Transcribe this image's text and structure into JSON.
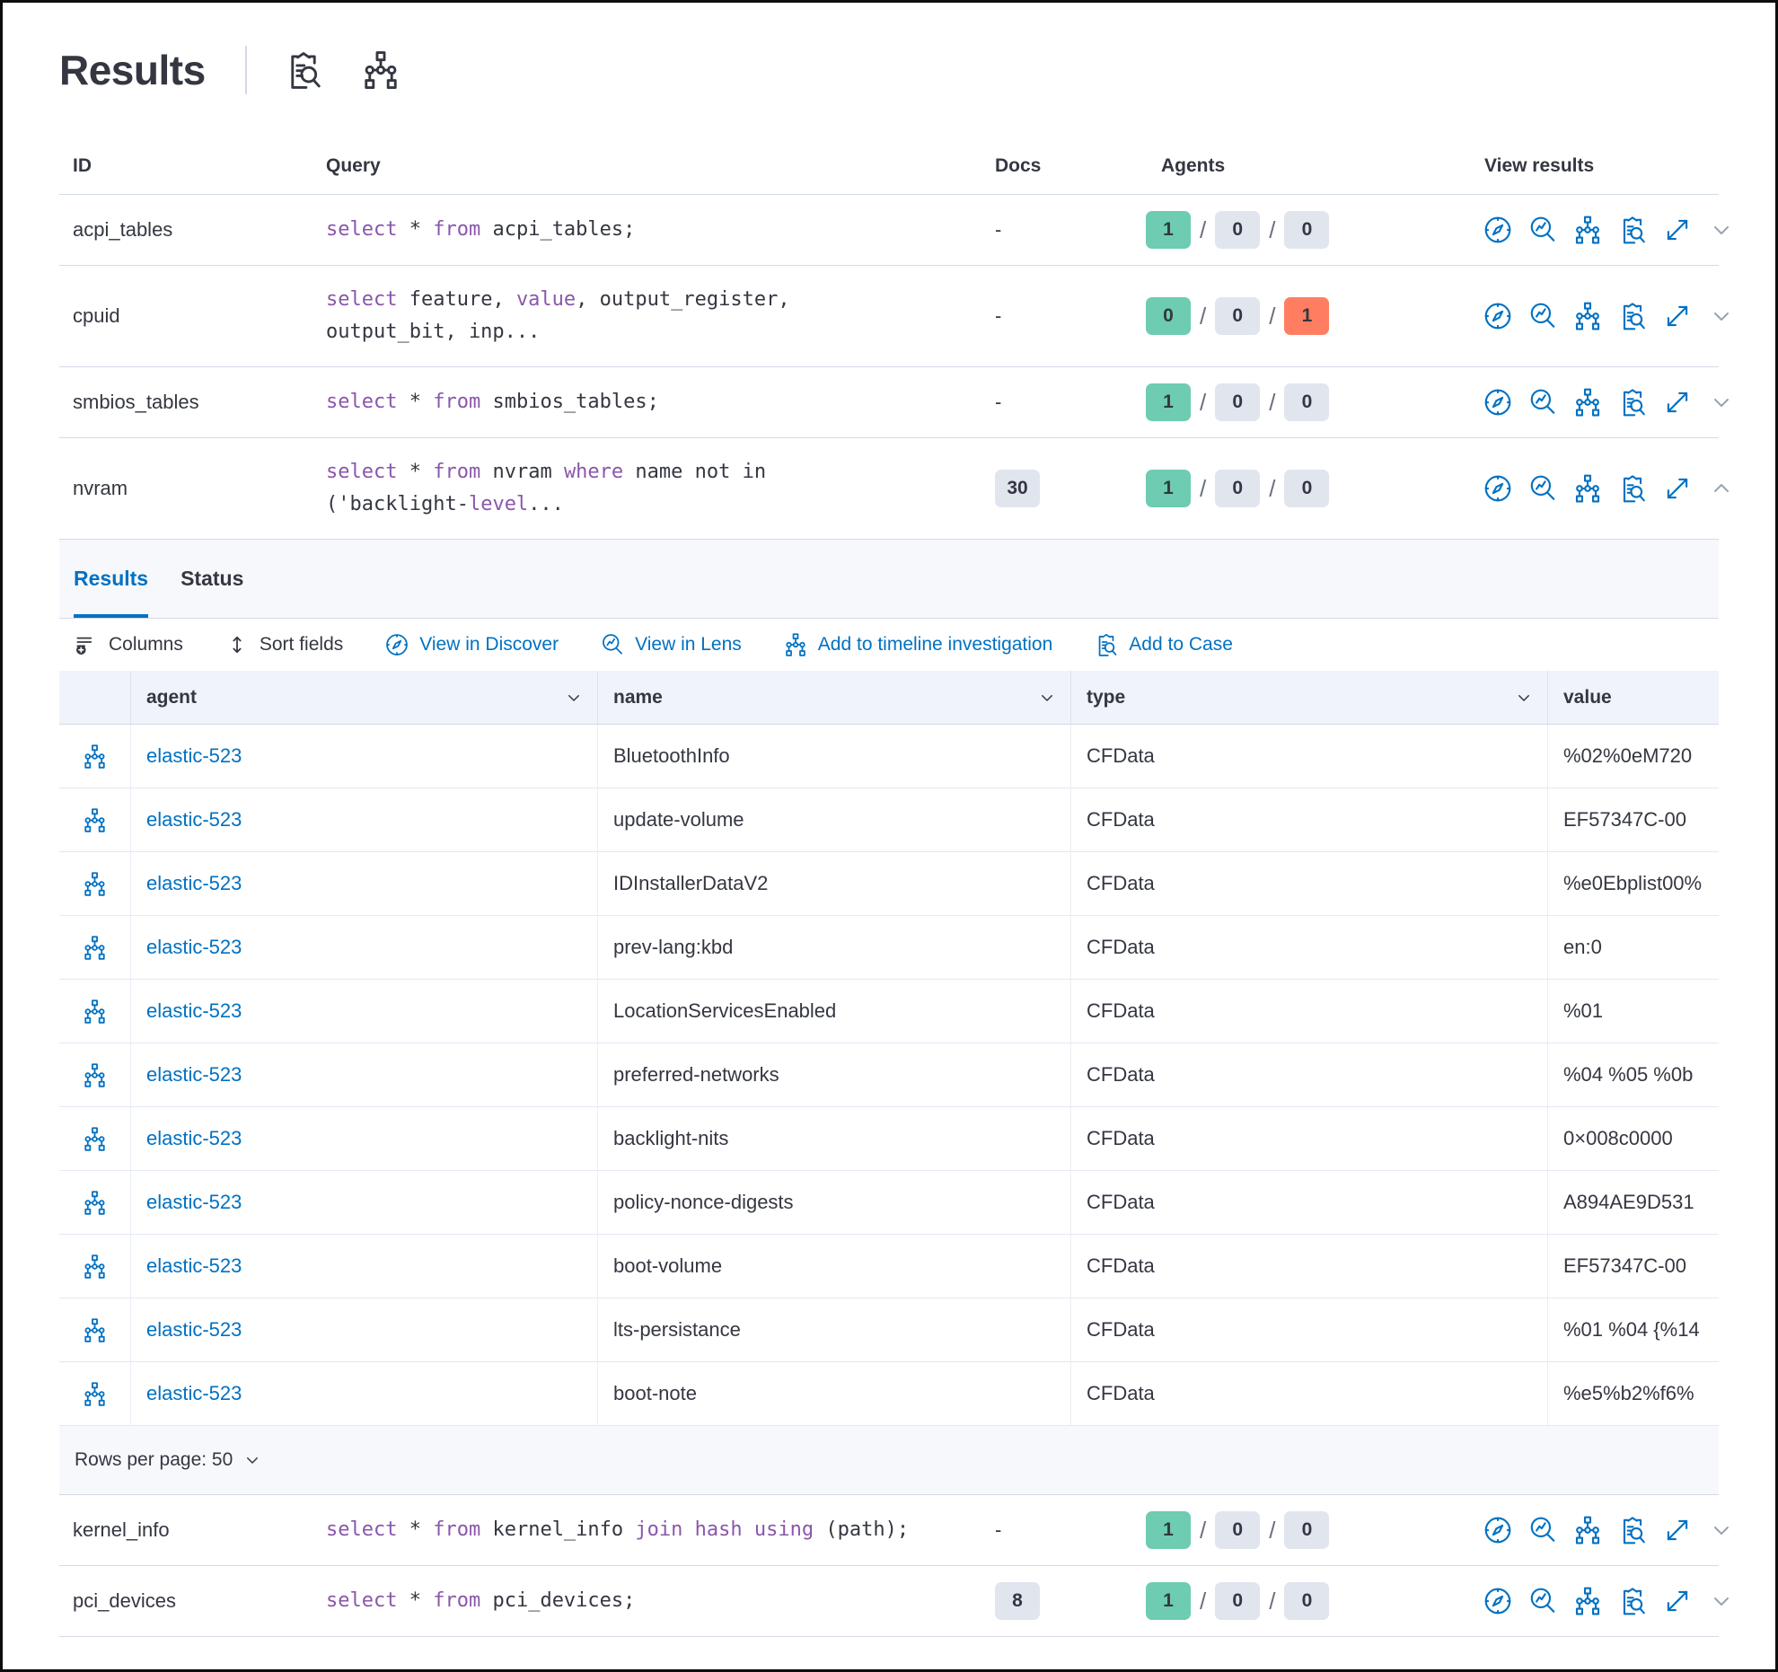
{
  "header": {
    "title": "Results",
    "icons": [
      "inspect",
      "timeline"
    ]
  },
  "table": {
    "columns": {
      "id": "ID",
      "query": "Query",
      "docs": "Docs",
      "agents": "Agents",
      "view": "View results"
    }
  },
  "view_results_icons": [
    "discover",
    "lens",
    "timeline",
    "case",
    "expand"
  ],
  "rows_top": [
    {
      "id": "acpi_tables",
      "query_lines": [
        [
          [
            "kw",
            "select"
          ],
          [
            "pl",
            " * "
          ],
          [
            "kw",
            "from"
          ],
          [
            "pl",
            " acpi_tables;"
          ]
        ]
      ],
      "docs": {
        "text": "-",
        "badge": null
      },
      "agents": [
        {
          "value": "1",
          "color": "green",
          "label": "success"
        },
        {
          "value": "0",
          "color": "gray",
          "label": "pending"
        },
        {
          "value": "0",
          "color": "gray",
          "label": "failed"
        }
      ],
      "expanded": false
    },
    {
      "id": "cpuid",
      "query_lines": [
        [
          [
            "kw",
            "select"
          ],
          [
            "pl",
            " feature, "
          ],
          [
            "kw",
            "value"
          ],
          [
            "pl",
            ", output_register,"
          ]
        ],
        [
          [
            "pl",
            "output_bit, inp..."
          ]
        ]
      ],
      "docs": {
        "text": "-",
        "badge": null
      },
      "agents": [
        {
          "value": "0",
          "color": "green",
          "label": "success"
        },
        {
          "value": "0",
          "color": "gray",
          "label": "pending"
        },
        {
          "value": "1",
          "color": "red",
          "label": "failed"
        }
      ],
      "expanded": false
    },
    {
      "id": "smbios_tables",
      "query_lines": [
        [
          [
            "kw",
            "select"
          ],
          [
            "pl",
            " * "
          ],
          [
            "kw",
            "from"
          ],
          [
            "pl",
            " smbios_tables;"
          ]
        ]
      ],
      "docs": {
        "text": "-",
        "badge": null
      },
      "agents": [
        {
          "value": "1",
          "color": "green",
          "label": "success"
        },
        {
          "value": "0",
          "color": "gray",
          "label": "pending"
        },
        {
          "value": "0",
          "color": "gray",
          "label": "failed"
        }
      ],
      "expanded": false
    },
    {
      "id": "nvram",
      "query_lines": [
        [
          [
            "kw",
            "select"
          ],
          [
            "pl",
            " * "
          ],
          [
            "kw",
            "from"
          ],
          [
            "pl",
            " nvram "
          ],
          [
            "kw",
            "where"
          ],
          [
            "pl",
            " name not in"
          ]
        ],
        [
          [
            "pl",
            "('backlight-"
          ],
          [
            "kw",
            "level"
          ],
          [
            "pl",
            "..."
          ]
        ]
      ],
      "docs": {
        "text": "",
        "badge": "30"
      },
      "agents": [
        {
          "value": "1",
          "color": "green",
          "label": "success"
        },
        {
          "value": "0",
          "color": "gray",
          "label": "pending"
        },
        {
          "value": "0",
          "color": "gray",
          "label": "failed"
        }
      ],
      "expanded": true
    }
  ],
  "rows_bottom": [
    {
      "id": "kernel_info",
      "query_lines": [
        [
          [
            "kw",
            "select"
          ],
          [
            "pl",
            " * "
          ],
          [
            "kw",
            "from"
          ],
          [
            "pl",
            " kernel_info "
          ],
          [
            "kw",
            "join"
          ],
          [
            "pl",
            " "
          ],
          [
            "kw",
            "hash"
          ],
          [
            "pl",
            " "
          ],
          [
            "kw",
            "using"
          ],
          [
            "pl",
            " (path);"
          ]
        ]
      ],
      "docs": {
        "text": "-",
        "badge": null
      },
      "agents": [
        {
          "value": "1",
          "color": "green",
          "label": "success"
        },
        {
          "value": "0",
          "color": "gray",
          "label": "pending"
        },
        {
          "value": "0",
          "color": "gray",
          "label": "failed"
        }
      ],
      "expanded": false
    },
    {
      "id": "pci_devices",
      "query_lines": [
        [
          [
            "kw",
            "select"
          ],
          [
            "pl",
            " * "
          ],
          [
            "kw",
            "from"
          ],
          [
            "pl",
            " pci_devices;"
          ]
        ]
      ],
      "docs": {
        "text": "",
        "badge": "8"
      },
      "agents": [
        {
          "value": "1",
          "color": "green",
          "label": "success"
        },
        {
          "value": "0",
          "color": "gray",
          "label": "pending"
        },
        {
          "value": "0",
          "color": "gray",
          "label": "failed"
        }
      ],
      "expanded": false
    }
  ],
  "panel": {
    "tabs": [
      {
        "label": "Results",
        "active": true
      },
      {
        "label": "Status",
        "active": false
      }
    ],
    "toolbar": [
      {
        "label": "Columns",
        "icon": "columns",
        "kind": "control"
      },
      {
        "label": "Sort fields",
        "icon": "sort",
        "kind": "control"
      },
      {
        "label": "View in Discover",
        "icon": "discover",
        "kind": "link"
      },
      {
        "label": "View in Lens",
        "icon": "lens",
        "kind": "link"
      },
      {
        "label": "Add to timeline investigation",
        "icon": "timeline",
        "kind": "link"
      },
      {
        "label": "Add to Case",
        "icon": "case",
        "kind": "link"
      }
    ],
    "grid": {
      "columns": [
        {
          "label": "agent",
          "sortable": true
        },
        {
          "label": "name",
          "sortable": true
        },
        {
          "label": "type",
          "sortable": true
        },
        {
          "label": "value",
          "sortable": false
        }
      ],
      "rows": [
        {
          "agent": "elastic-523",
          "name": "BluetoothInfo",
          "type": "CFData",
          "value": "%02%0eM720"
        },
        {
          "agent": "elastic-523",
          "name": "update-volume",
          "type": "CFData",
          "value": "EF57347C-00"
        },
        {
          "agent": "elastic-523",
          "name": "IDInstallerDataV2",
          "type": "CFData",
          "value": "%e0Ebplist00%"
        },
        {
          "agent": "elastic-523",
          "name": "prev-lang:kbd",
          "type": "CFData",
          "value": "en:0"
        },
        {
          "agent": "elastic-523",
          "name": "LocationServicesEnabled",
          "type": "CFData",
          "value": "%01"
        },
        {
          "agent": "elastic-523",
          "name": "preferred-networks",
          "type": "CFData",
          "value": "%04 %05 %0b"
        },
        {
          "agent": "elastic-523",
          "name": "backlight-nits",
          "type": "CFData",
          "value": "0×008c0000"
        },
        {
          "agent": "elastic-523",
          "name": "policy-nonce-digests",
          "type": "CFData",
          "value": "A894AE9D531"
        },
        {
          "agent": "elastic-523",
          "name": "boot-volume",
          "type": "CFData",
          "value": "EF57347C-00"
        },
        {
          "agent": "elastic-523",
          "name": "lts-persistance",
          "type": "CFData",
          "value": "%01 %04 {%14"
        },
        {
          "agent": "elastic-523",
          "name": "boot-note",
          "type": "CFData",
          "value": "%e5%b2%f6%"
        }
      ]
    },
    "footer": {
      "rows_per_page_label": "Rows per page: 50"
    }
  },
  "colors": {
    "primary": "#0071c2",
    "sql_keyword": "#8a57ab",
    "badge_success": "#6dccb1",
    "badge_neutral": "#e0e5ee",
    "badge_error": "#ff7e62",
    "text": "#343741",
    "panel_background": "#f7f8fc"
  }
}
